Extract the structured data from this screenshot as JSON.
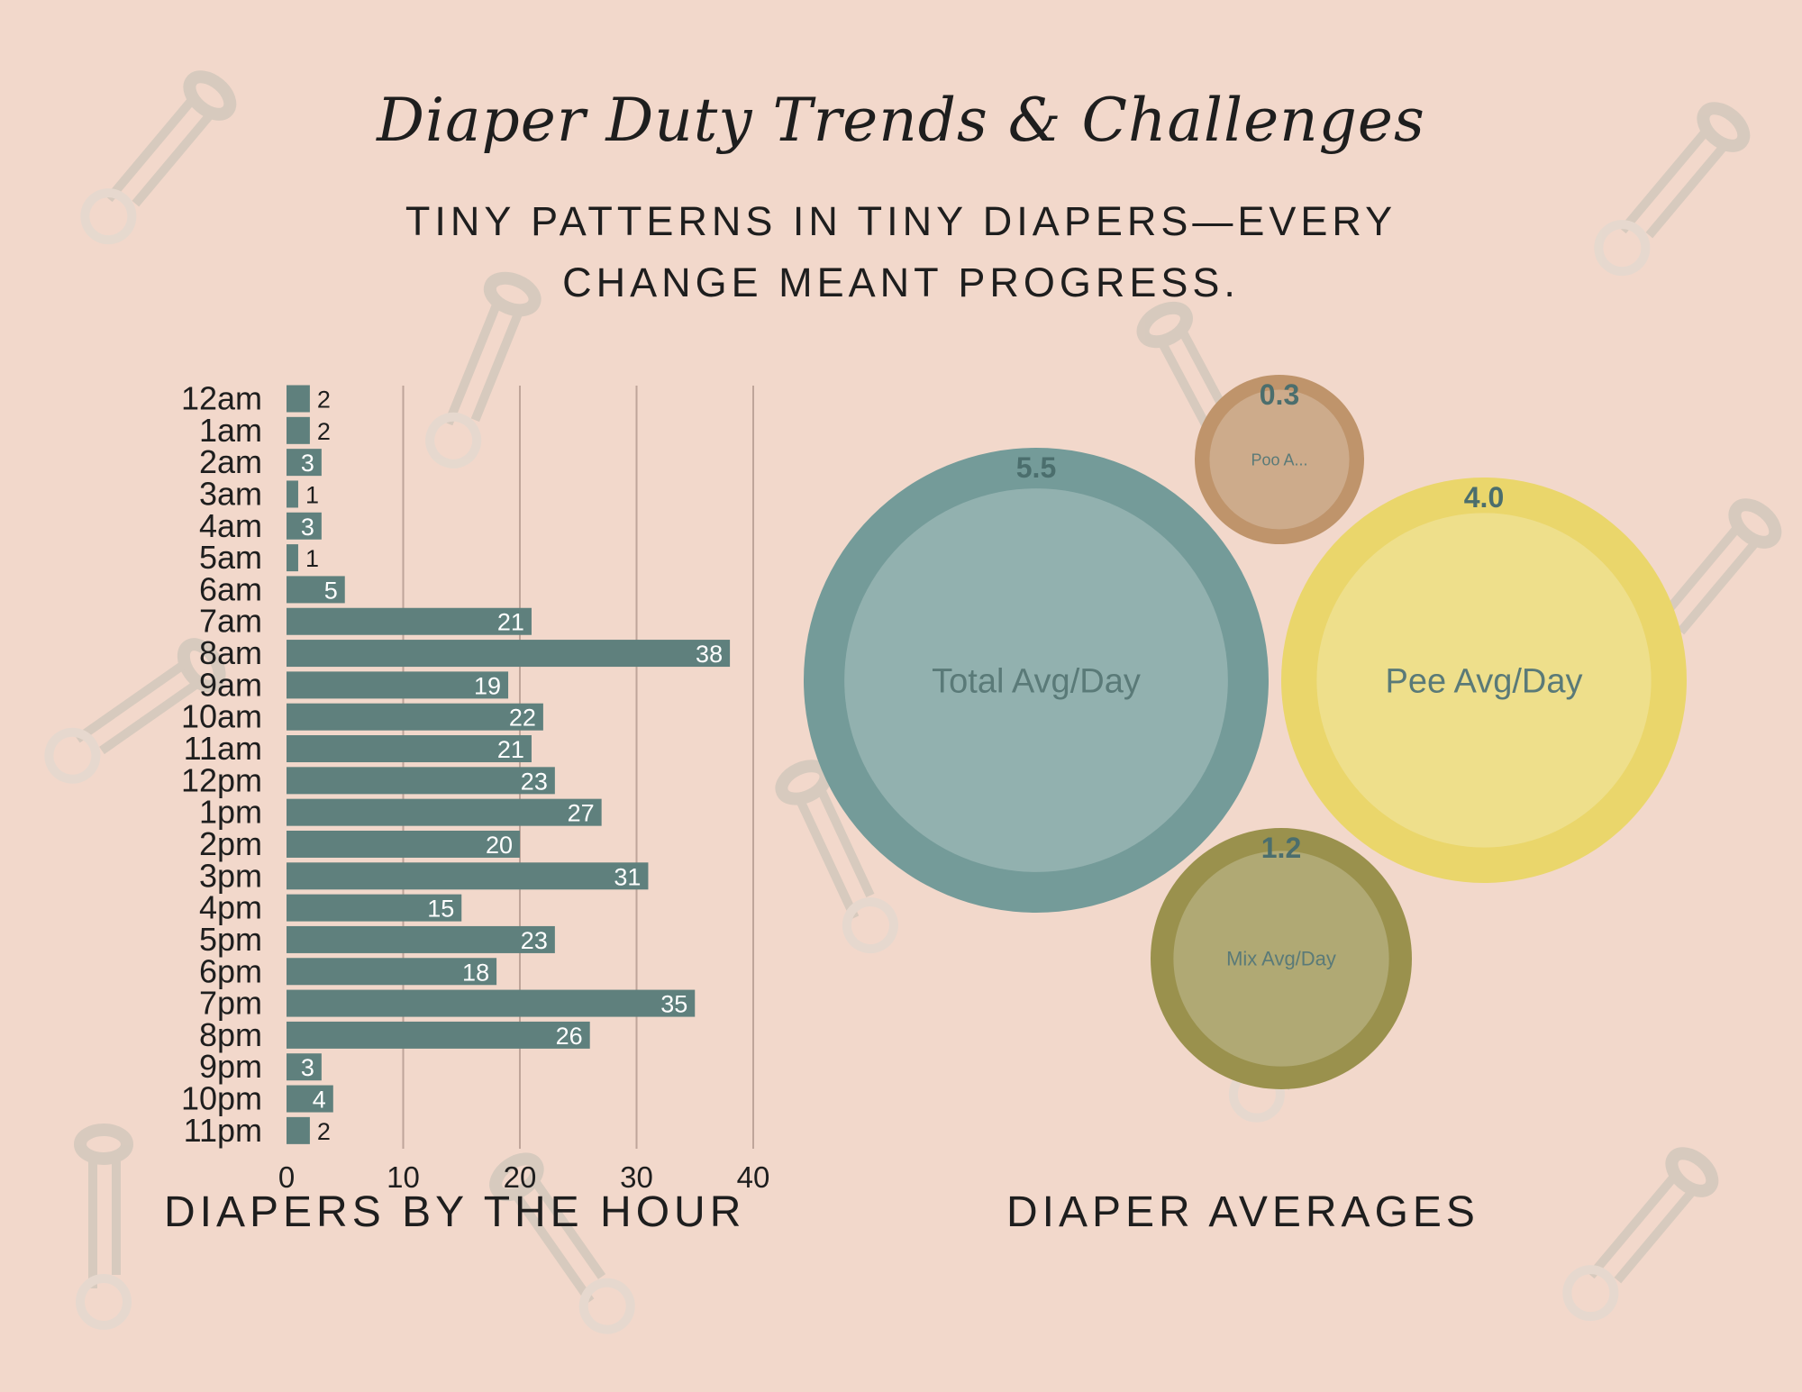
{
  "title": "Diaper Duty Trends & Challenges",
  "subtitle_lines": [
    "TINY PATTERNS IN TINY DIAPERS—EVERY",
    "CHANGE MEANT PROGRESS."
  ],
  "colors": {
    "background": "#f2d8cb",
    "bar": "#5f807d",
    "total": "#749b99",
    "pee": "#ead66b",
    "poo": "#bf946b",
    "mix": "#9a914d",
    "value_label": "#4b6e6d",
    "pin": "#d6cbc0"
  },
  "icons": [
    "safety-pin-icon"
  ],
  "chart_data": [
    {
      "type": "bar",
      "orientation": "horizontal",
      "title": "DIAPERS BY THE HOUR",
      "categories": [
        "12am",
        "1am",
        "2am",
        "3am",
        "4am",
        "5am",
        "6am",
        "7am",
        "8am",
        "9am",
        "10am",
        "11am",
        "12pm",
        "1pm",
        "2pm",
        "3pm",
        "4pm",
        "5pm",
        "6pm",
        "7pm",
        "8pm",
        "9pm",
        "10pm",
        "11pm"
      ],
      "values": [
        2,
        2,
        3,
        1,
        3,
        1,
        5,
        21,
        38,
        19,
        22,
        21,
        23,
        27,
        20,
        31,
        15,
        23,
        18,
        35,
        26,
        3,
        4,
        2
      ],
      "xlim": [
        0,
        40
      ],
      "xticks": [
        0,
        10,
        20,
        30,
        40
      ],
      "grid": true
    },
    {
      "type": "bubble",
      "title": "DIAPER AVERAGES",
      "items": [
        {
          "name": "Total Avg/Day",
          "value": "5.5",
          "color_key": "total"
        },
        {
          "name": "Pee Avg/Day",
          "value": "4.0",
          "color_key": "pee"
        },
        {
          "name": "Poo A...",
          "value": "0.3",
          "color_key": "poo"
        },
        {
          "name": "Mix Avg/Day",
          "value": "1.2",
          "color_key": "mix"
        }
      ]
    }
  ]
}
